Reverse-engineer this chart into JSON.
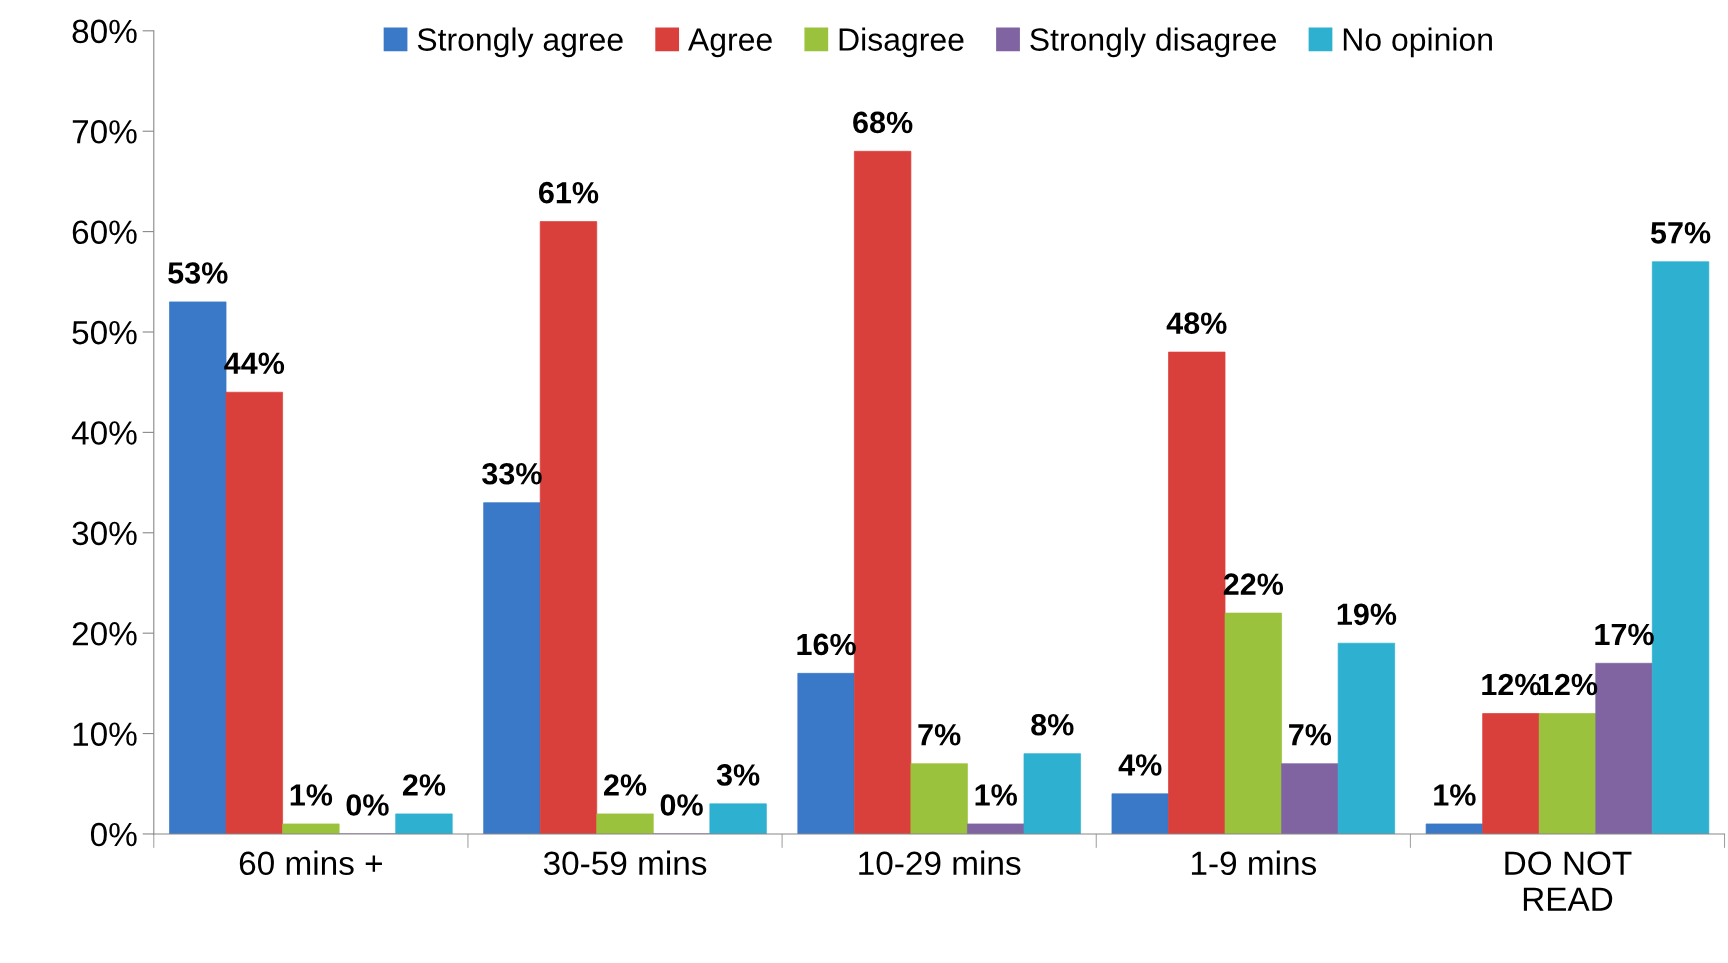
{
  "chart_data": {
    "type": "bar",
    "categories": [
      "60 mins +",
      "30-59 mins",
      "10-29 mins",
      "1-9 mins",
      "DO NOT\nREAD"
    ],
    "series": [
      {
        "name": "Strongly agree",
        "color": "#3a78c8",
        "values": [
          53,
          33,
          16,
          4,
          1
        ],
        "value_labels": [
          "53%",
          "33%",
          "16%",
          "4%",
          "1%"
        ]
      },
      {
        "name": "Agree",
        "color": "#d9403b",
        "values": [
          44,
          61,
          68,
          48,
          12
        ],
        "value_labels": [
          "44%",
          "61%",
          "68%",
          "48%",
          "12%"
        ]
      },
      {
        "name": "Disagree",
        "color": "#9bc23c",
        "values": [
          1,
          2,
          7,
          22,
          12
        ],
        "value_labels": [
          "1%",
          "2%",
          "7%",
          "22%",
          "12%"
        ]
      },
      {
        "name": "Strongly disagree",
        "color": "#8064a2",
        "values": [
          0,
          0,
          1,
          7,
          17
        ],
        "value_labels": [
          "0%",
          "0%",
          "1%",
          "7%",
          "17%"
        ]
      },
      {
        "name": "No opinion",
        "color": "#2eb0d0",
        "values": [
          2,
          3,
          8,
          19,
          57
        ],
        "value_labels": [
          "2%",
          "3%",
          "8%",
          "19%",
          "57%"
        ]
      }
    ],
    "ylim": [
      0,
      80
    ],
    "yticks": [
      {
        "value": 0,
        "label": "0%"
      },
      {
        "value": 10,
        "label": "10%"
      },
      {
        "value": 20,
        "label": "20%"
      },
      {
        "value": 30,
        "label": "30%"
      },
      {
        "value": 40,
        "label": "40%"
      },
      {
        "value": 50,
        "label": "50%"
      },
      {
        "value": 60,
        "label": "60%"
      },
      {
        "value": 70,
        "label": "70%"
      },
      {
        "value": 80,
        "label": "80%"
      }
    ],
    "legend": "top",
    "grid": false
  }
}
